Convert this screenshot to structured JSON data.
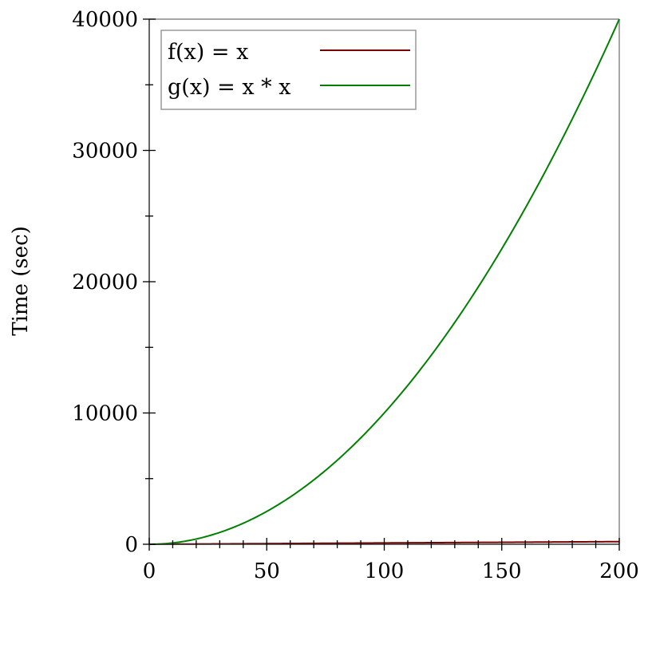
{
  "chart_data": {
    "type": "line",
    "title": "",
    "xlabel": "",
    "ylabel": "Time (sec)",
    "xlim": [
      0,
      200
    ],
    "ylim": [
      0,
      40000
    ],
    "x_ticks": [
      0,
      50,
      100,
      150,
      200
    ],
    "x_tick_labels": [
      "0",
      "50",
      "100",
      "150",
      "200"
    ],
    "x_minor_step": 10,
    "y_ticks": [
      0,
      10000,
      20000,
      30000,
      40000
    ],
    "y_tick_labels": [
      "0",
      "10000",
      "20000",
      "30000",
      "40000"
    ],
    "y_minor_step": 5000,
    "grid": false,
    "legend_position": "top-left",
    "series": [
      {
        "name": "f(x) = x",
        "color": "#7a0000",
        "x": [
          0,
          50,
          100,
          150,
          200
        ],
        "y": [
          0,
          50,
          100,
          150,
          200
        ]
      },
      {
        "name": "g(x) = x * x",
        "color": "#008000",
        "x": [
          0,
          25,
          50,
          75,
          100,
          125,
          150,
          175,
          200
        ],
        "y": [
          0,
          625,
          2500,
          5625,
          10000,
          15625,
          22500,
          30625,
          40000
        ]
      }
    ]
  }
}
